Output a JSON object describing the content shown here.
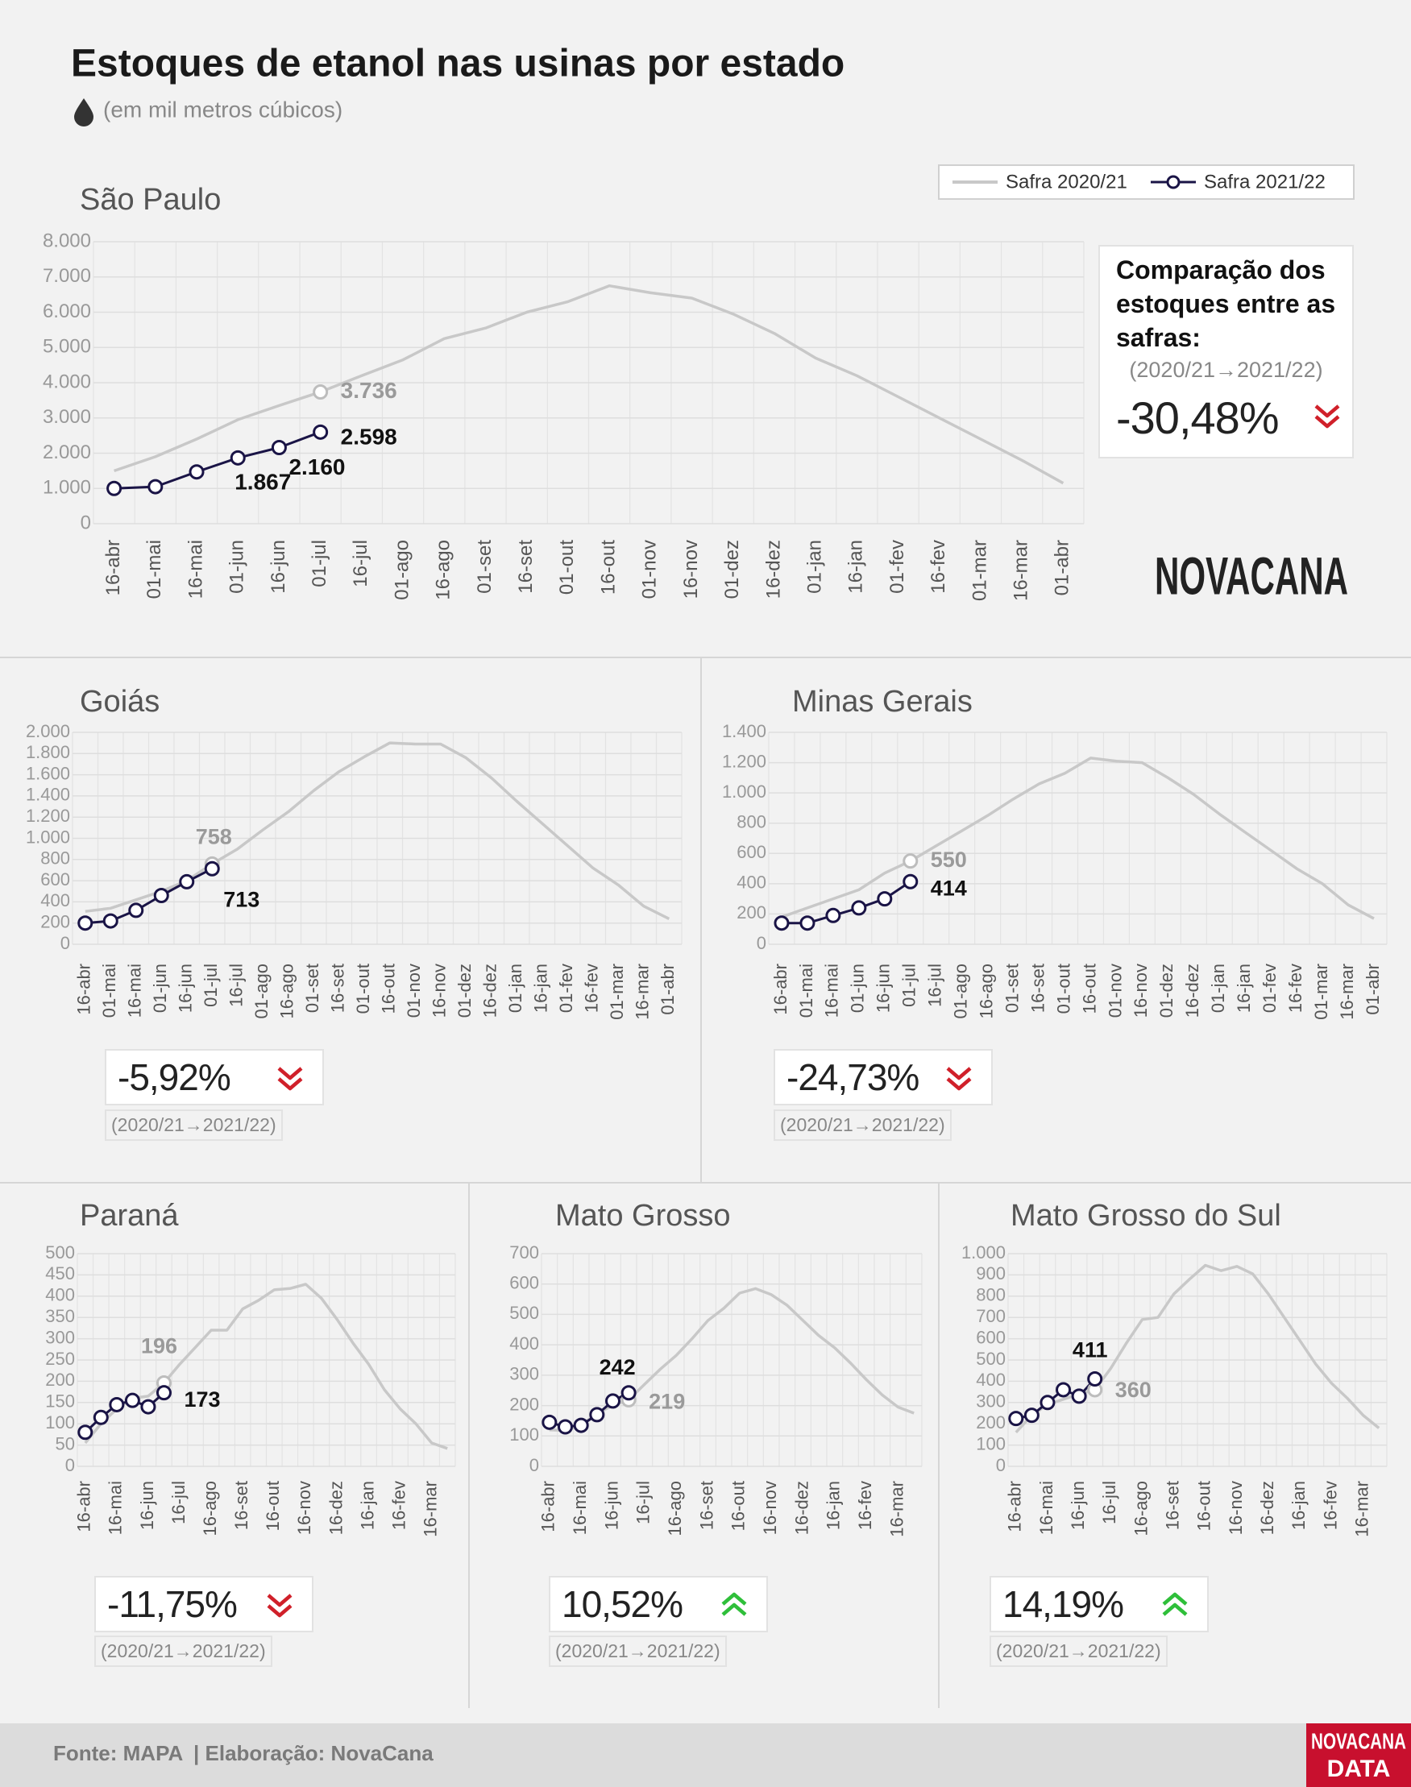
{
  "title": "Estoques de etanol nas usinas por estado",
  "subtitle": "(em mil metros cúbicos)",
  "comparison_title": "Comparação dos estoques entre as safras:",
  "source": "Fonte: MAPA",
  "credit": "| Elaboração: NovaCana",
  "logo": "NOVACANA",
  "footer_logo": [
    "NOVACANA",
    "DATA"
  ],
  "chart_data": [
    {
      "type": "line",
      "title": "São Paulo",
      "categories": [
        "16-abr",
        "01-mai",
        "16-mai",
        "01-jun",
        "16-jun",
        "01-jul",
        "16-jul",
        "01-ago",
        "16-ago",
        "01-set",
        "16-set",
        "01-out",
        "16-out",
        "01-nov",
        "16-nov",
        "01-dez",
        "16-dez",
        "01-jan",
        "16-jan",
        "01-fev",
        "16-fev",
        "01-mar",
        "16-mar",
        "01-abr"
      ],
      "series": [
        {
          "name": "Safra 2020/21",
          "color": "#c8c8c8",
          "values": [
            1500,
            1900,
            2400,
            2950,
            3350,
            3736,
            4200,
            4650,
            5250,
            5550,
            6000,
            6300,
            6750,
            6550,
            6400,
            5950,
            5400,
            4700,
            4200,
            3600,
            3000,
            2400,
            1800,
            1150
          ],
          "value_labels": [
            null,
            null,
            null,
            null,
            null,
            "3.736",
            null,
            null,
            null,
            null,
            null,
            null,
            null,
            null,
            null,
            null,
            null,
            null,
            null,
            null,
            null,
            null,
            null,
            null
          ]
        },
        {
          "name": "Safra 2021/22",
          "color": "#1a1446",
          "values": [
            1000,
            1050,
            1470,
            1867,
            2160,
            2598,
            null,
            null,
            null,
            null,
            null,
            null,
            null,
            null,
            null,
            null,
            null,
            null,
            null,
            null,
            null,
            null,
            null,
            null
          ],
          "value_labels": [
            null,
            null,
            null,
            "1.867",
            "2.160",
            "2.598",
            null,
            null,
            null,
            null,
            null,
            null,
            null,
            null,
            null,
            null,
            null,
            null,
            null,
            null,
            null,
            null,
            null,
            null
          ]
        }
      ],
      "ylim": [
        0,
        8000
      ],
      "yticks": [
        0,
        {
          "value": 1000,
          "label": "1.000"
        },
        {
          "value": 2000,
          "label": "2.000"
        },
        {
          "value": 3000,
          "label": "3.000"
        },
        {
          "value": 4000,
          "label": "4.000"
        },
        {
          "value": 5000,
          "label": "5.000"
        },
        {
          "value": 6000,
          "label": "6.000"
        },
        {
          "value": 7000,
          "label": "7.000"
        },
        {
          "value": 8000,
          "label": "8.000"
        }
      ],
      "grid": true,
      "change": "-30,48%",
      "period": "(2020/21→2021/22)"
    },
    {
      "type": "line",
      "title": "Goiás",
      "categories": [
        "16-abr",
        "01-mai",
        "16-mai",
        "01-jun",
        "16-jun",
        "01-jul",
        "16-jul",
        "01-ago",
        "16-ago",
        "01-set",
        "16-set",
        "01-out",
        "16-out",
        "01-nov",
        "16-nov",
        "01-dez",
        "16-dez",
        "01-jan",
        "16-jan",
        "01-fev",
        "16-fev",
        "01-mar",
        "16-mar",
        "01-abr"
      ],
      "series": [
        {
          "color": "#c8c8c8",
          "values": [
            310,
            340,
            420,
            500,
            600,
            758,
            900,
            1080,
            1250,
            1450,
            1630,
            1770,
            1900,
            1890,
            1890,
            1760,
            1570,
            1350,
            1140,
            930,
            720,
            560,
            360,
            240
          ],
          "value_labels": [
            null,
            null,
            null,
            null,
            null,
            "758",
            null,
            null,
            null,
            null,
            null,
            null,
            null,
            null,
            null,
            null,
            null,
            null,
            null,
            null,
            null,
            null,
            null,
            null
          ]
        },
        {
          "color": "#1a1446",
          "values": [
            200,
            220,
            320,
            460,
            590,
            713,
            null,
            null,
            null,
            null,
            null,
            null,
            null,
            null,
            null,
            null,
            null,
            null,
            null,
            null,
            null,
            null,
            null,
            null
          ],
          "value_labels": [
            null,
            null,
            null,
            null,
            null,
            "713",
            null,
            null,
            null,
            null,
            null,
            null,
            null,
            null,
            null,
            null,
            null,
            null,
            null,
            null,
            null,
            null,
            null,
            null
          ]
        }
      ],
      "ylim": [
        0,
        2000
      ],
      "yticks": [
        0,
        200,
        400,
        600,
        800,
        {
          "value": 1000,
          "label": "1.000"
        },
        {
          "value": 1200,
          "label": "1.200"
        },
        {
          "value": 1400,
          "label": "1.400"
        },
        {
          "value": 1600,
          "label": "1.600"
        },
        {
          "value": 1800,
          "label": "1.800"
        },
        {
          "value": 2000,
          "label": "2.000"
        }
      ],
      "grid": true,
      "change": "-5,92%",
      "period": "(2020/21→2021/22)"
    },
    {
      "type": "line",
      "title": "Minas Gerais",
      "categories": [
        "16-abr",
        "01-mai",
        "16-mai",
        "01-jun",
        "16-jun",
        "01-jul",
        "16-jul",
        "01-ago",
        "16-ago",
        "01-set",
        "16-set",
        "01-out",
        "16-out",
        "01-nov",
        "16-nov",
        "01-dez",
        "16-dez",
        "01-jan",
        "16-jan",
        "01-fev",
        "16-fev",
        "01-mar",
        "16-mar",
        "01-abr"
      ],
      "series": [
        {
          "color": "#c8c8c8",
          "values": [
            180,
            240,
            300,
            360,
            470,
            550,
            650,
            750,
            850,
            960,
            1060,
            1130,
            1230,
            1210,
            1200,
            1100,
            990,
            860,
            740,
            620,
            500,
            400,
            260,
            170
          ],
          "value_labels": [
            null,
            null,
            null,
            null,
            null,
            "550",
            null,
            null,
            null,
            null,
            null,
            null,
            null,
            null,
            null,
            null,
            null,
            null,
            null,
            null,
            null,
            null,
            null,
            null
          ]
        },
        {
          "color": "#1a1446",
          "values": [
            140,
            140,
            190,
            240,
            300,
            414,
            null,
            null,
            null,
            null,
            null,
            null,
            null,
            null,
            null,
            null,
            null,
            null,
            null,
            null,
            null,
            null,
            null,
            null
          ],
          "value_labels": [
            null,
            null,
            null,
            null,
            null,
            "414",
            null,
            null,
            null,
            null,
            null,
            null,
            null,
            null,
            null,
            null,
            null,
            null,
            null,
            null,
            null,
            null,
            null,
            null
          ]
        }
      ],
      "ylim": [
        0,
        1400
      ],
      "yticks": [
        0,
        200,
        400,
        600,
        800,
        {
          "value": 1000,
          "label": "1.000"
        },
        {
          "value": 1200,
          "label": "1.200"
        },
        {
          "value": 1400,
          "label": "1.400"
        }
      ],
      "grid": true,
      "change": "-24,73%",
      "period": "(2020/21→2021/22)"
    },
    {
      "type": "line",
      "title": "Paraná",
      "categories": [
        "16-abr",
        null,
        "16-mai",
        null,
        "16-jun",
        null,
        "16-jul",
        null,
        "16-ago",
        null,
        "16-set",
        null,
        "16-out",
        null,
        "16-nov",
        null,
        "16-dez",
        null,
        "16-jan",
        null,
        "16-fev",
        null,
        "16-mar",
        null
      ],
      "series": [
        {
          "color": "#c8c8c8",
          "values": [
            55,
            100,
            135,
            160,
            165,
            196,
            240,
            280,
            320,
            320,
            370,
            390,
            415,
            418,
            428,
            395,
            345,
            290,
            240,
            180,
            135,
            100,
            55,
            42
          ],
          "value_labels": [
            null,
            null,
            null,
            null,
            null,
            "196",
            null,
            null,
            null,
            null,
            null,
            null,
            null,
            null,
            null,
            null,
            null,
            null,
            null,
            null,
            null,
            null,
            null,
            null
          ]
        },
        {
          "color": "#1a1446",
          "values": [
            80,
            115,
            145,
            155,
            140,
            173,
            null,
            null,
            null,
            null,
            null,
            null,
            null,
            null,
            null,
            null,
            null,
            null,
            null,
            null,
            null,
            null,
            null,
            null
          ],
          "value_labels": [
            null,
            null,
            null,
            null,
            null,
            "173",
            null,
            null,
            null,
            null,
            null,
            null,
            null,
            null,
            null,
            null,
            null,
            null,
            null,
            null,
            null,
            null,
            null,
            null
          ]
        }
      ],
      "ylim": [
        0,
        500
      ],
      "yticks": [
        0,
        50,
        100,
        150,
        200,
        250,
        300,
        350,
        400,
        450,
        500
      ],
      "grid": true,
      "change": "-11,75%",
      "period": "(2020/21→2021/22)"
    },
    {
      "type": "line",
      "title": "Mato Grosso",
      "categories": [
        "16-abr",
        null,
        "16-mai",
        null,
        "16-jun",
        null,
        "16-jul",
        null,
        "16-ago",
        null,
        "16-set",
        null,
        "16-out",
        null,
        "16-nov",
        null,
        "16-dez",
        null,
        "16-jan",
        null,
        "16-fev",
        null,
        "16-mar",
        null
      ],
      "series": [
        {
          "color": "#c8c8c8",
          "values": [
            120,
            118,
            135,
            175,
            200,
            219,
            270,
            320,
            365,
            420,
            480,
            520,
            570,
            585,
            565,
            530,
            480,
            430,
            390,
            340,
            285,
            235,
            195,
            175
          ],
          "value_labels": [
            null,
            null,
            null,
            null,
            null,
            "219",
            null,
            null,
            null,
            null,
            null,
            null,
            null,
            null,
            null,
            null,
            null,
            null,
            null,
            null,
            null,
            null,
            null,
            null
          ]
        },
        {
          "color": "#1a1446",
          "values": [
            145,
            130,
            135,
            170,
            215,
            242,
            null,
            null,
            null,
            null,
            null,
            null,
            null,
            null,
            null,
            null,
            null,
            null,
            null,
            null,
            null,
            null,
            null,
            null
          ],
          "value_labels": [
            null,
            null,
            null,
            null,
            null,
            "242",
            null,
            null,
            null,
            null,
            null,
            null,
            null,
            null,
            null,
            null,
            null,
            null,
            null,
            null,
            null,
            null,
            null,
            null
          ]
        }
      ],
      "ylim": [
        0,
        700
      ],
      "yticks": [
        0,
        100,
        200,
        300,
        400,
        500,
        600,
        700
      ],
      "grid": true,
      "change": "10,52%",
      "period": "(2020/21→2021/22)"
    },
    {
      "type": "line",
      "title": "Mato Grosso do Sul",
      "categories": [
        "16-abr",
        null,
        "16-mai",
        null,
        "16-jun",
        null,
        "16-jul",
        null,
        "16-ago",
        null,
        "16-set",
        null,
        "16-out",
        null,
        "16-nov",
        null,
        "16-dez",
        null,
        "16-jan",
        null,
        "16-fev",
        null,
        "16-mar",
        null
      ],
      "series": [
        {
          "color": "#c8c8c8",
          "values": [
            160,
            240,
            290,
            315,
            340,
            360,
            460,
            580,
            690,
            700,
            810,
            880,
            945,
            920,
            940,
            905,
            810,
            700,
            590,
            480,
            390,
            320,
            240,
            180
          ],
          "value_labels": [
            null,
            null,
            null,
            null,
            null,
            "360",
            null,
            null,
            null,
            null,
            null,
            null,
            null,
            null,
            null,
            null,
            null,
            null,
            null,
            null,
            null,
            null,
            null,
            null
          ]
        },
        {
          "color": "#1a1446",
          "values": [
            225,
            240,
            300,
            360,
            330,
            411,
            null,
            null,
            null,
            null,
            null,
            null,
            null,
            null,
            null,
            null,
            null,
            null,
            null,
            null,
            null,
            null,
            null,
            null
          ],
          "value_labels": [
            null,
            null,
            null,
            null,
            null,
            "411",
            null,
            null,
            null,
            null,
            null,
            null,
            null,
            null,
            null,
            null,
            null,
            null,
            null,
            null,
            null,
            null,
            null,
            null
          ]
        }
      ],
      "ylim": [
        0,
        1000
      ],
      "yticks": [
        0,
        100,
        200,
        300,
        400,
        500,
        600,
        700,
        800,
        900,
        {
          "value": 1000,
          "label": "1.000"
        }
      ],
      "grid": true,
      "change": "14,19%",
      "period": "(2020/21→2021/22)"
    }
  ]
}
